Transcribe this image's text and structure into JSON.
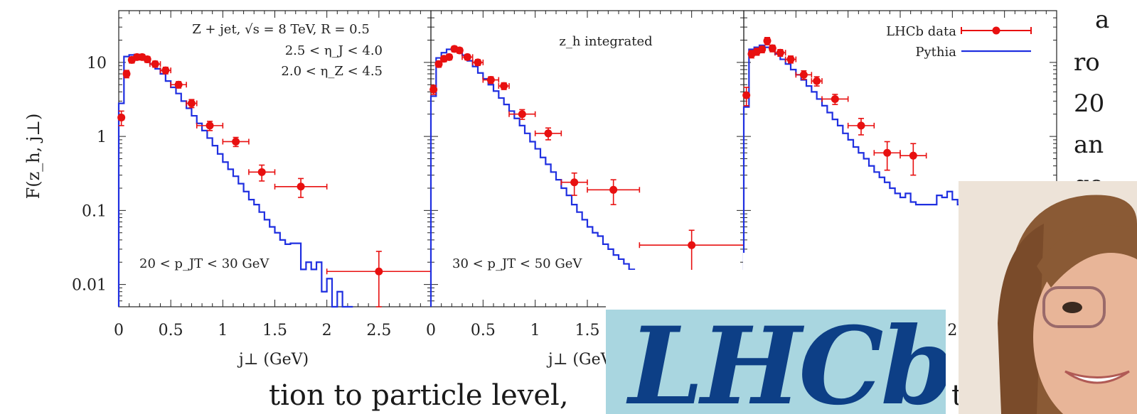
{
  "chart_data": {
    "type": "scatter",
    "yscale": "log",
    "ylabel": "F(z_h, j⊥)",
    "xlabel": "j⊥ (GeV)",
    "ylim": [
      0.005,
      50
    ],
    "yticks": [
      "10",
      "1",
      "0.1",
      "0.01"
    ],
    "legend": {
      "placement": "top-right",
      "entries": [
        "LHCb data",
        "Pythia"
      ]
    },
    "panels": [
      {
        "annotations": [
          "Z + jet,  √s = 8 TeV,  R = 0.5",
          "2.5 < η_J < 4.0",
          "2.0 < η_Z < 4.5"
        ],
        "bin_label": "20 < p_JT < 30 GeV",
        "xlim": [
          0,
          3
        ],
        "xticks": [
          "0",
          "0.5",
          "1",
          "1.5",
          "2",
          "2.5"
        ],
        "data": {
          "x": [
            0.025,
            0.075,
            0.125,
            0.175,
            0.225,
            0.275,
            0.35,
            0.45,
            0.575,
            0.7,
            0.875,
            1.125,
            1.375,
            1.75,
            2.5
          ],
          "xerr": [
            0.025,
            0.025,
            0.025,
            0.025,
            0.025,
            0.025,
            0.05,
            0.05,
            0.075,
            0.05,
            0.125,
            0.125,
            0.125,
            0.25,
            0.5
          ],
          "y": [
            1.8,
            7.0,
            10.8,
            11.8,
            11.8,
            11.0,
            9.5,
            7.8,
            5.0,
            2.8,
            1.4,
            0.85,
            0.33,
            0.21,
            0.015
          ],
          "yerr": [
            0.4,
            0.8,
            1.0,
            1.0,
            1.0,
            1.0,
            0.9,
            0.8,
            0.5,
            0.35,
            0.2,
            0.12,
            0.08,
            0.06,
            0.013
          ]
        },
        "pythia": {
          "edges": [
            0,
            0.05,
            0.1,
            0.15,
            0.2,
            0.25,
            0.3,
            0.35,
            0.4,
            0.45,
            0.5,
            0.55,
            0.6,
            0.65,
            0.7,
            0.75,
            0.8,
            0.85,
            0.9,
            0.95,
            1.0,
            1.05,
            1.1,
            1.15,
            1.2,
            1.25,
            1.3,
            1.35,
            1.4,
            1.45,
            1.5,
            1.55,
            1.6,
            1.65,
            1.7,
            1.75,
            1.8,
            1.85,
            1.9,
            1.95,
            2.0,
            2.05,
            2.1,
            2.15,
            2.2
          ],
          "values": [
            2.8,
            12.0,
            12.6,
            12.8,
            12.0,
            11.0,
            9.5,
            8.2,
            7.0,
            5.6,
            4.6,
            3.8,
            3.0,
            2.4,
            1.9,
            1.5,
            1.2,
            0.95,
            0.75,
            0.58,
            0.45,
            0.36,
            0.29,
            0.23,
            0.18,
            0.14,
            0.12,
            0.095,
            0.075,
            0.06,
            0.05,
            0.04,
            0.035,
            0.036,
            0.036,
            0.016,
            0.02,
            0.016,
            0.02,
            0.008,
            0.012,
            0.005,
            0.008,
            0.005,
            0.005
          ]
        }
      },
      {
        "annotations": [
          "z_h integrated"
        ],
        "bin_label": "30 < p_JT < 50 GeV",
        "xlim": [
          0,
          3
        ],
        "xticks": [
          "0",
          "0.5",
          "1",
          "1.5"
        ],
        "data": {
          "x": [
            0.025,
            0.075,
            0.125,
            0.175,
            0.225,
            0.275,
            0.35,
            0.45,
            0.575,
            0.7,
            0.875,
            1.125,
            1.375,
            1.75,
            2.5
          ],
          "xerr": [
            0.025,
            0.025,
            0.025,
            0.025,
            0.025,
            0.025,
            0.05,
            0.05,
            0.075,
            0.05,
            0.125,
            0.125,
            0.125,
            0.25,
            0.5
          ],
          "y": [
            4.3,
            9.5,
            11.2,
            11.8,
            15.2,
            14.5,
            11.8,
            10.0,
            5.8,
            4.8,
            2.0,
            1.1,
            0.24,
            0.19,
            0.034
          ],
          "yerr": [
            0.6,
            0.9,
            1.0,
            1.0,
            1.3,
            1.2,
            1.0,
            0.9,
            0.6,
            0.5,
            0.3,
            0.2,
            0.08,
            0.07,
            0.02
          ]
        },
        "pythia": {
          "edges": [
            0,
            0.05,
            0.1,
            0.15,
            0.2,
            0.25,
            0.3,
            0.35,
            0.4,
            0.45,
            0.5,
            0.55,
            0.6,
            0.65,
            0.7,
            0.75,
            0.8,
            0.85,
            0.9,
            0.95,
            1.0,
            1.05,
            1.1,
            1.15,
            1.2,
            1.25,
            1.3,
            1.35,
            1.4,
            1.45,
            1.5,
            1.55,
            1.6,
            1.65,
            1.7,
            1.75,
            1.8,
            1.85,
            1.9,
            1.95,
            2.0,
            2.05,
            2.1,
            2.15,
            2.2
          ],
          "values": [
            3.5,
            11.5,
            13.5,
            15.0,
            15.0,
            14.0,
            12.5,
            10.5,
            8.8,
            7.2,
            6.0,
            5.0,
            4.1,
            3.3,
            2.7,
            2.2,
            1.75,
            1.4,
            1.1,
            0.85,
            0.68,
            0.52,
            0.42,
            0.33,
            0.26,
            0.2,
            0.16,
            0.12,
            0.095,
            0.075,
            0.06,
            0.05,
            0.045,
            0.035,
            0.03,
            0.025,
            0.022,
            0.019,
            0.016,
            0.014,
            0.012,
            0.011,
            0.01,
            0.009,
            0.008
          ]
        }
      },
      {
        "annotations": [],
        "bin_label": "",
        "xlim": [
          0,
          3
        ],
        "xticks": [
          "2"
        ],
        "data": {
          "x": [
            0.025,
            0.075,
            0.125,
            0.175,
            0.225,
            0.275,
            0.35,
            0.45,
            0.575,
            0.7,
            0.875,
            1.125,
            1.375,
            1.625,
            1.875
          ],
          "xerr": [
            0.025,
            0.025,
            0.025,
            0.025,
            0.025,
            0.025,
            0.05,
            0.05,
            0.075,
            0.05,
            0.125,
            0.125,
            0.125,
            0.125,
            0.125
          ],
          "y": [
            3.6,
            13.0,
            14.0,
            15.0,
            19.5,
            15.5,
            13.5,
            11.0,
            6.8,
            5.6,
            3.2,
            1.4,
            0.6,
            0.55,
            0.0
          ],
          "yerr": [
            1.0,
            1.5,
            1.5,
            1.5,
            2.2,
            1.6,
            1.4,
            1.2,
            0.9,
            0.8,
            0.5,
            0.35,
            0.25,
            0.25,
            0.0
          ]
        },
        "pythia": {
          "edges": [
            0,
            0.05,
            0.1,
            0.15,
            0.2,
            0.25,
            0.3,
            0.35,
            0.4,
            0.45,
            0.5,
            0.55,
            0.6,
            0.65,
            0.7,
            0.75,
            0.8,
            0.85,
            0.9,
            0.95,
            1.0,
            1.05,
            1.1,
            1.15,
            1.2,
            1.25,
            1.3,
            1.35,
            1.4,
            1.45,
            1.5,
            1.55,
            1.6,
            1.65,
            1.7,
            1.75,
            1.8,
            1.85,
            1.9,
            1.95,
            2.0,
            2.05,
            2.1
          ],
          "values": [
            2.5,
            15.0,
            16.0,
            17.0,
            16.0,
            14.5,
            13.0,
            11.0,
            9.5,
            8.0,
            6.8,
            5.8,
            4.8,
            4.0,
            3.2,
            2.6,
            2.1,
            1.7,
            1.4,
            1.1,
            0.9,
            0.72,
            0.6,
            0.5,
            0.4,
            0.33,
            0.28,
            0.24,
            0.2,
            0.17,
            0.15,
            0.17,
            0.13,
            0.12,
            0.12,
            0.12,
            0.12,
            0.16,
            0.15,
            0.18,
            0.14,
            0.12,
            0.12
          ]
        }
      }
    ]
  },
  "background_text": {
    "right_fragments": [
      "a",
      "ro",
      "20",
      "an",
      "go"
    ],
    "bottom_fragment": "tion to particle level,",
    "bottom_fragment_end": "t"
  },
  "logo": {
    "text": "LHCb"
  },
  "colors": {
    "data": "#e81010",
    "pythia": "#1f2fe0",
    "logo_bg": "#a9d6e0",
    "logo_fg": "#0d3f86"
  }
}
